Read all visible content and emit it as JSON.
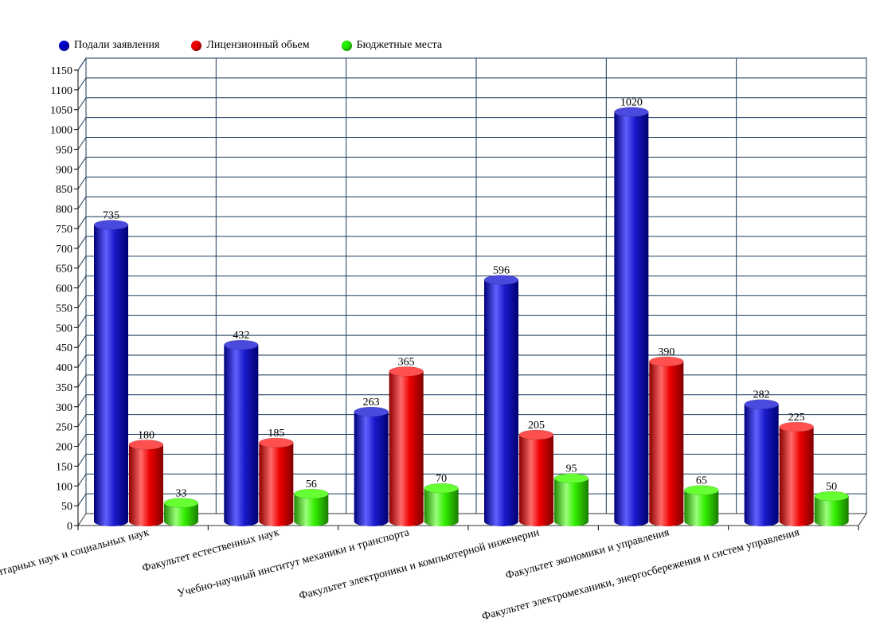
{
  "chart_data": {
    "type": "bar",
    "categories": [
      "Факультет гуманитарных наук и социальных наук",
      "Факультет естественных наук",
      "Учебно-научный институт механики и транспорта",
      "Факультет электроники и компьютерной инженерии",
      "Факультет экономики и управления",
      "Факультет электромеханики, энергосбережения и систем управления"
    ],
    "series": [
      {
        "name": "Подали заявления",
        "color": "#0000cc",
        "values": [
          735,
          432,
          263,
          596,
          1020,
          282
        ]
      },
      {
        "name": "Лицензионный обьем",
        "color": "#ee0000",
        "values": [
          180,
          185,
          365,
          205,
          390,
          225
        ]
      },
      {
        "name": "Бюджетные места",
        "color": "#22ee00",
        "values": [
          33,
          56,
          70,
          95,
          65,
          50
        ]
      }
    ],
    "ylim": [
      0,
      1150
    ],
    "ytick_step": 50,
    "grid": true,
    "legend_position": "top-left",
    "title": "",
    "xlabel": "",
    "ylabel": ""
  }
}
